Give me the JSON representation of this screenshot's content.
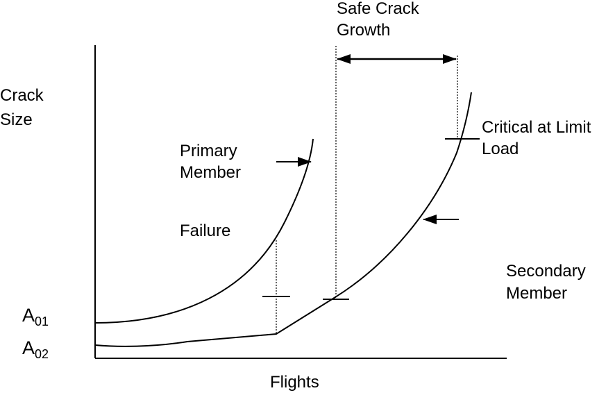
{
  "y_axis_label": [
    "Crack",
    "Size"
  ],
  "x_axis_label": "Flights",
  "y_tick_labels": [
    {
      "base": "A",
      "subscript": "01"
    },
    {
      "base": "A",
      "subscript": "02"
    }
  ],
  "annotations": {
    "safe_crack_growth": [
      "Safe Crack",
      "Growth"
    ],
    "critical_at_limit_load": [
      "Critical at Limit",
      "Load"
    ],
    "primary_member": [
      "Primary",
      "Member"
    ],
    "failure": "Failure",
    "secondary_member": [
      "Secondary",
      "Member"
    ]
  },
  "colors": {
    "line": "#000000",
    "background": "#ffffff"
  }
}
